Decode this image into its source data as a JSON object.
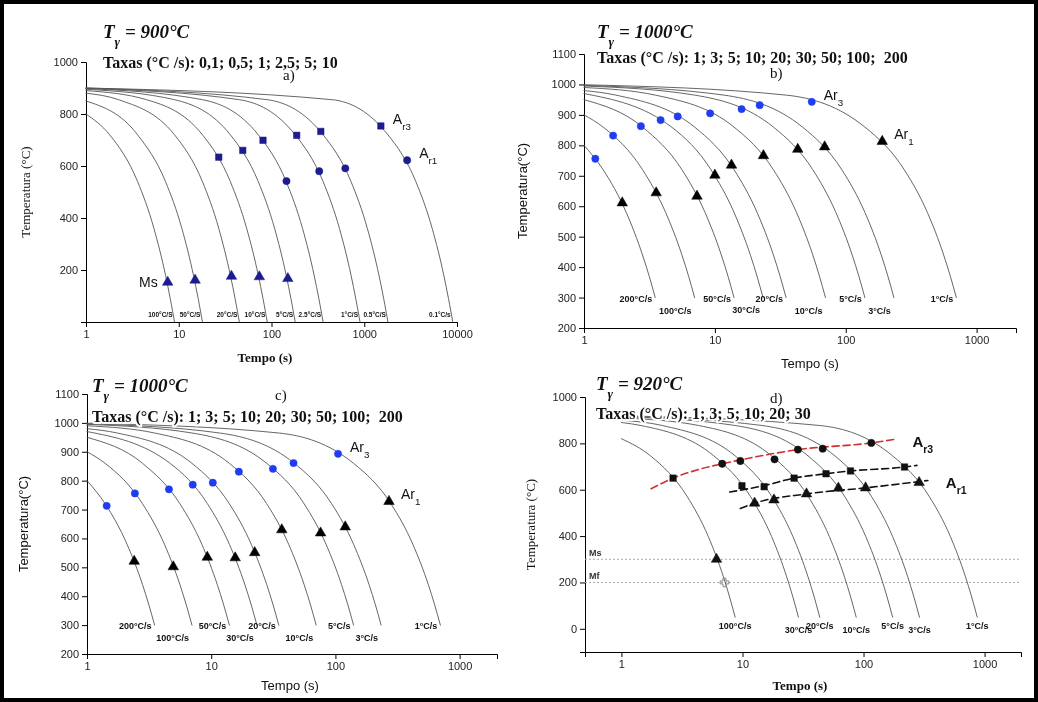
{
  "chart_data": [
    {
      "type": "line",
      "title": "T$_{γ}$ = 900°C",
      "subtitle": "Taxas (°C /s): 0,1; 0,5; 1; 2,5; 5; 10",
      "annotations": [
        "a)"
      ],
      "xlabel": "Tempo (s)",
      "ylabel": "Temperatura (°C)",
      "log": "x",
      "xlim": [
        1,
        10000
      ],
      "xticks": [
        1,
        10,
        100,
        1000,
        10000
      ],
      "ylim": [
        0,
        1000
      ],
      "yticks": [
        200,
        400,
        600,
        800,
        1000
      ],
      "series": [
        {
          "type": "line",
          "name": "100°C/S",
          "color": "#555555",
          "marker": "none",
          "x": [
            1,
            1.8,
            3.6,
            5.4,
            7.2,
            8.1,
            9
          ],
          "values": [
            800,
            720,
            540,
            360,
            180,
            90,
            0
          ]
        },
        {
          "type": "line",
          "name": "50°C/S",
          "color": "#555555",
          "marker": "none",
          "x": [
            1,
            3.6,
            7.2,
            10.8,
            14.4,
            16.2,
            18
          ],
          "values": [
            850,
            720,
            540,
            360,
            180,
            90,
            0
          ]
        },
        {
          "type": "line",
          "name": "20°C/S",
          "color": "#555555",
          "marker": "none",
          "x": [
            1,
            2.25,
            9,
            18,
            27,
            36,
            40.5,
            45
          ],
          "values": [
            880,
            855,
            720,
            540,
            360,
            180,
            90,
            0
          ]
        },
        {
          "type": "line",
          "name": "10°C/S",
          "color": "#555555",
          "marker": "none",
          "x": [
            1,
            4.5,
            18,
            36,
            54,
            72,
            81,
            90
          ],
          "values": [
            890,
            855,
            720,
            540,
            360,
            180,
            90,
            0
          ]
        },
        {
          "type": "line",
          "name": "5°C/S",
          "color": "#555555",
          "marker": "none",
          "x": [
            1,
            9,
            36,
            72,
            108,
            144,
            162,
            180
          ],
          "values": [
            895,
            855,
            720,
            540,
            360,
            180,
            90,
            0
          ]
        },
        {
          "type": "line",
          "name": "2.5°C/S",
          "color": "#555555",
          "marker": "none",
          "x": [
            1,
            18,
            72,
            144,
            216,
            288,
            324,
            360
          ],
          "values": [
            898,
            855,
            720,
            540,
            360,
            180,
            90,
            0
          ]
        },
        {
          "type": "line",
          "name": "1°C/S",
          "color": "#555555",
          "marker": "none",
          "x": [
            1,
            45,
            180,
            360,
            540,
            720,
            810,
            900
          ],
          "values": [
            899,
            855,
            720,
            540,
            360,
            180,
            90,
            0
          ]
        },
        {
          "type": "line",
          "name": "0.5°C/S",
          "color": "#555555",
          "marker": "none",
          "x": [
            1,
            90,
            360,
            720,
            1080,
            1440,
            1620,
            1800
          ],
          "values": [
            900,
            855,
            720,
            540,
            360,
            180,
            90,
            0
          ]
        },
        {
          "type": "line",
          "name": "0.1°C/s",
          "color": "#555555",
          "marker": "none",
          "x": [
            1,
            450,
            1800,
            3600,
            5400,
            7200,
            8100,
            9000
          ],
          "values": [
            900,
            855,
            720,
            540,
            360,
            180,
            90,
            0
          ]
        },
        {
          "type": "scatter",
          "name": "A$_{r3}$",
          "color": "#1c1c8f",
          "marker": "square",
          "x": [
            27,
            49,
            81,
            187,
            340,
            1510
          ],
          "values": [
            634,
            660,
            699,
            718,
            733,
            754
          ]
        },
        {
          "type": "scatter",
          "name": "A$_{r1}$",
          "color": "#1c1c8f",
          "marker": "circle",
          "x": [
            145,
            327,
            625,
            2900
          ],
          "values": [
            542,
            580,
            591,
            622
          ]
        },
        {
          "type": "scatter",
          "name": "Ms",
          "color": "#1c1c8f",
          "marker": "triangle",
          "x": [
            7.6,
            15,
            37,
            74,
            150
          ],
          "values": [
            153,
            161,
            176,
            174,
            167
          ]
        }
      ]
    },
    {
      "type": "line",
      "title": "T$_{γ}$ = 1000°C",
      "subtitle": "Taxas (°C /s): 1; 3; 5; 10; 20; 30; 50; 100;  200",
      "annotations": [
        "b)"
      ],
      "xlabel": "Tempo (s)",
      "ylabel": "Temperatura(°C)",
      "log": "x",
      "xlim": [
        1,
        2000
      ],
      "xticks": [
        1,
        10,
        100,
        1000
      ],
      "ylim": [
        200,
        1100
      ],
      "yticks": [
        200,
        300,
        400,
        500,
        600,
        700,
        800,
        900,
        1000,
        1100
      ],
      "series": [
        {
          "type": "line",
          "name": "200°C/s",
          "color": "#555555",
          "marker": "none",
          "x": [
            1,
            1.4,
            2.1,
            2.8,
            3.15,
            3.5
          ],
          "values": [
            800,
            720,
            580,
            440,
            370,
            300
          ]
        },
        {
          "type": "line",
          "name": "100°C/s",
          "color": "#555555",
          "marker": "none",
          "x": [
            1,
            1.4,
            2.8,
            4.2,
            5.6,
            6.3,
            7
          ],
          "values": [
            900,
            860,
            720,
            580,
            440,
            370,
            300
          ]
        },
        {
          "type": "line",
          "name": "50°C/s",
          "color": "#555555",
          "marker": "none",
          "x": [
            1,
            2.8,
            5.6,
            8.4,
            11.2,
            12.6,
            14
          ],
          "values": [
            950,
            860,
            720,
            580,
            440,
            370,
            300
          ]
        },
        {
          "type": "line",
          "name": "30°C/s",
          "color": "#555555",
          "marker": "none",
          "x": [
            1,
            4.7,
            9.3,
            14,
            18.7,
            21,
            23.3
          ],
          "values": [
            970,
            859,
            721,
            580,
            439,
            370,
            301
          ]
        },
        {
          "type": "line",
          "name": "20°C/s",
          "color": "#555555",
          "marker": "none",
          "x": [
            1,
            1.75,
            7,
            14,
            21,
            28,
            31.5,
            35
          ],
          "values": [
            980,
            965,
            860,
            720,
            580,
            440,
            370,
            300
          ]
        },
        {
          "type": "line",
          "name": "10°C/s",
          "color": "#555555",
          "marker": "none",
          "x": [
            1,
            3.5,
            14,
            28,
            42,
            56,
            63,
            70
          ],
          "values": [
            990,
            965,
            860,
            720,
            580,
            440,
            370,
            300
          ]
        },
        {
          "type": "line",
          "name": "5°C/s",
          "color": "#555555",
          "marker": "none",
          "x": [
            1,
            7,
            28,
            56,
            84,
            112,
            126,
            140
          ],
          "values": [
            995,
            965,
            860,
            720,
            580,
            440,
            370,
            300
          ]
        },
        {
          "type": "line",
          "name": "3°C/s",
          "color": "#555555",
          "marker": "none",
          "x": [
            1,
            11.7,
            46.7,
            93.3,
            140,
            186.7,
            210,
            233.3
          ],
          "values": [
            997,
            965,
            860,
            720,
            580,
            440,
            370,
            300
          ]
        },
        {
          "type": "line",
          "name": "1°C/s",
          "color": "#555555",
          "marker": "none",
          "x": [
            1,
            35,
            140,
            280,
            420,
            560,
            630,
            700
          ],
          "values": [
            999,
            965,
            860,
            720,
            580,
            440,
            370,
            300
          ]
        },
        {
          "type": "scatter",
          "name": "Ar$_{3}$",
          "color": "#1f3cf0",
          "marker": "circle",
          "x": [
            1.22,
            1.67,
            2.72,
            3.85,
            5.2,
            9.2,
            16,
            22,
            55
          ],
          "values": [
            756,
            832,
            863,
            883,
            895,
            905,
            919,
            932,
            943
          ]
        },
        {
          "type": "scatter",
          "name": "Ar$_{1}$",
          "color": "#000000",
          "marker": "triangle",
          "x": [
            1.96,
            3.56,
            7.3,
            10,
            13.4,
            23.5,
            43,
            69,
            190
          ],
          "values": [
            611,
            644,
            633,
            702,
            735,
            766,
            787,
            795,
            813
          ]
        }
      ]
    },
    {
      "type": "line",
      "title": "T$_{γ}$ = 1000°C",
      "subtitle": "Taxas (°C /s): 1; 3; 5; 10; 20; 30; 50; 100;  200",
      "annotations": [
        "c)"
      ],
      "xlabel": "Tempo (s)",
      "ylabel": "Temperatura(°C)",
      "log": "x",
      "xlim": [
        1,
        2000
      ],
      "xticks": [
        1,
        10,
        100,
        1000
      ],
      "ylim": [
        200,
        1100
      ],
      "yticks": [
        200,
        300,
        400,
        500,
        600,
        700,
        800,
        900,
        1000,
        1100
      ],
      "series": [
        {
          "type": "line",
          "name": "200°C/s",
          "color": "#555555",
          "marker": "none",
          "x": [
            1,
            1.4,
            2.1,
            2.8,
            3.15,
            3.5
          ],
          "values": [
            800,
            720,
            580,
            440,
            370,
            300
          ]
        },
        {
          "type": "line",
          "name": "100°C/s",
          "color": "#555555",
          "marker": "none",
          "x": [
            1,
            1.4,
            2.8,
            4.2,
            5.6,
            6.3,
            7
          ],
          "values": [
            900,
            860,
            720,
            580,
            440,
            370,
            300
          ]
        },
        {
          "type": "line",
          "name": "50°C/s",
          "color": "#555555",
          "marker": "none",
          "x": [
            1,
            2.8,
            5.6,
            8.4,
            11.2,
            12.6,
            14
          ],
          "values": [
            950,
            860,
            720,
            580,
            440,
            370,
            300
          ]
        },
        {
          "type": "line",
          "name": "30°C/s",
          "color": "#555555",
          "marker": "none",
          "x": [
            1,
            4.7,
            9.3,
            14,
            18.7,
            21,
            23.3
          ],
          "values": [
            970,
            859,
            721,
            580,
            439,
            370,
            301
          ]
        },
        {
          "type": "line",
          "name": "20°C/s",
          "color": "#555555",
          "marker": "none",
          "x": [
            1,
            1.75,
            7,
            14,
            21,
            28,
            31.5,
            35
          ],
          "values": [
            980,
            965,
            860,
            720,
            580,
            440,
            370,
            300
          ]
        },
        {
          "type": "line",
          "name": "10°C/s",
          "color": "#555555",
          "marker": "none",
          "x": [
            1,
            3.5,
            14,
            28,
            42,
            56,
            63,
            70
          ],
          "values": [
            990,
            965,
            860,
            720,
            580,
            440,
            370,
            300
          ]
        },
        {
          "type": "line",
          "name": "5°C/s",
          "color": "#555555",
          "marker": "none",
          "x": [
            1,
            7,
            28,
            56,
            84,
            112,
            126,
            140
          ],
          "values": [
            995,
            965,
            860,
            720,
            580,
            440,
            370,
            300
          ]
        },
        {
          "type": "line",
          "name": "3°C/s",
          "color": "#555555",
          "marker": "none",
          "x": [
            1,
            11.7,
            46.7,
            93.3,
            140,
            186.7,
            210,
            233.3
          ],
          "values": [
            997,
            965,
            860,
            720,
            580,
            440,
            370,
            300
          ]
        },
        {
          "type": "line",
          "name": "1°C/s",
          "color": "#555555",
          "marker": "none",
          "x": [
            1,
            35,
            140,
            280,
            420,
            560,
            630,
            700
          ],
          "values": [
            999,
            965,
            860,
            720,
            580,
            440,
            370,
            300
          ]
        },
        {
          "type": "scatter",
          "name": "Ar$_{3}$",
          "color": "#1f3cf0",
          "marker": "circle",
          "x": [
            1.44,
            2.43,
            4.57,
            7.1,
            10.3,
            16.7,
            31.4,
            46,
            105
          ],
          "values": [
            713,
            756,
            770,
            786,
            793,
            831,
            841,
            861,
            893
          ]
        },
        {
          "type": "scatter",
          "name": "Ar$_{1}$",
          "color": "#000000",
          "marker": "triangle",
          "x": [
            2.4,
            4.95,
            9.3,
            15.6,
            22.4,
            37,
            76,
            120,
            270
          ],
          "values": [
            521,
            502,
            535,
            533,
            551,
            630,
            619,
            640,
            728
          ]
        }
      ]
    },
    {
      "type": "line",
      "title": "T$_{γ}$ = 920°C",
      "subtitle": "Taxas (°C /s): 1; 3; 5; 10; 20; 30",
      "annotations": [
        "d)"
      ],
      "xlabel": "Tempo (s)",
      "ylabel": "Temperatura (°C)",
      "log": "x",
      "xlim": [
        0.5,
        2000
      ],
      "xticks": [
        1,
        10,
        100,
        1000
      ],
      "ylim": [
        -100,
        1000
      ],
      "yticks": [
        0,
        200,
        400,
        600,
        800,
        1000
      ],
      "ref_lines": [
        {
          "axis": "y",
          "value": 300,
          "label": "Ms",
          "color": "#aaaaaa",
          "line_style": "dotted"
        },
        {
          "axis": "y",
          "value": 200,
          "label": "Mf",
          "color": "#aaaaaa",
          "line_style": "dotted"
        }
      ],
      "series": [
        {
          "type": "line",
          "name": "100°C/s",
          "color": "#555555",
          "marker": "none",
          "x": [
            1,
            1.74,
            3.48,
            5.22,
            6.96,
            7.83,
            8.7
          ],
          "values": [
            820,
            746,
            572,
            398,
            224,
            137,
            50
          ]
        },
        {
          "type": "line",
          "name": "30°C/s",
          "color": "#555555",
          "marker": "none",
          "x": [
            1,
            1.45,
            5.8,
            11.6,
            17.4,
            23.2,
            26.1,
            29
          ],
          "values": [
            890,
            877,
            746,
            572,
            398,
            224,
            137,
            50
          ]
        },
        {
          "type": "line",
          "name": "20°C/s",
          "color": "#555555",
          "marker": "none",
          "x": [
            1,
            2.175,
            8.7,
            17.4,
            26.1,
            34.8,
            39.15,
            43.5
          ],
          "values": [
            900,
            877,
            746,
            572,
            398,
            224,
            137,
            50
          ]
        },
        {
          "type": "line",
          "name": "10°C/s",
          "color": "#555555",
          "marker": "none",
          "x": [
            1,
            4.35,
            17.4,
            34.8,
            52.2,
            69.6,
            78.3,
            87
          ],
          "values": [
            910,
            877,
            746,
            572,
            398,
            224,
            137,
            50
          ]
        },
        {
          "type": "line",
          "name": "5°C/s",
          "color": "#555555",
          "marker": "none",
          "x": [
            1,
            8.7,
            34.8,
            69.6,
            104.4,
            139.2,
            156.6,
            174
          ],
          "values": [
            915,
            877,
            746,
            572,
            398,
            224,
            137,
            50
          ]
        },
        {
          "type": "line",
          "name": "3°C/s",
          "color": "#555555",
          "marker": "none",
          "x": [
            1,
            14.5,
            58,
            116,
            174,
            232,
            261,
            290
          ],
          "values": [
            917,
            877,
            746,
            572,
            398,
            224,
            137,
            50
          ]
        },
        {
          "type": "line",
          "name": "1°C/s",
          "color": "#555555",
          "marker": "none",
          "x": [
            1,
            43.5,
            174,
            348,
            522,
            696,
            783,
            870
          ],
          "values": [
            919,
            877,
            746,
            572,
            398,
            224,
            137,
            50
          ]
        },
        {
          "type": "line",
          "name": "A$_{r3}$",
          "color": "#d03030",
          "marker": "none",
          "line_style": "dashed",
          "x": [
            1.76,
            2.67,
            4.27,
            6.8,
            11.8,
            28.7,
            116,
            180
          ],
          "values": [
            604,
            650,
            686,
            712,
            738,
            773,
            802,
            817
          ]
        },
        {
          "type": "line",
          "color": "#111111",
          "marker": "none",
          "line_style": "dashed",
          "x": [
            7.85,
            15.1,
            26.7,
            49,
            78,
            218,
            276
          ],
          "values": [
            590,
            618,
            650,
            669,
            681,
            698,
            705
          ]
        },
        {
          "type": "line",
          "name": "A$_{r1}$",
          "color": "#111111",
          "marker": "none",
          "line_style": "dashed",
          "x": [
            9.6,
            12.6,
            33.8,
            104,
            340
          ],
          "values": [
            519,
            542,
            582,
            608,
            640
          ]
        },
        {
          "type": "scatter",
          "color": "#111111",
          "marker": "circle",
          "x": [
            6.8,
            9.6,
            18.4,
            28.7,
            46,
            116
          ],
          "values": [
            712,
            724,
            731,
            773,
            777,
            802
          ]
        },
        {
          "type": "scatter",
          "color": "#111111",
          "marker": "square",
          "x": [
            2.67,
            9.9,
            15.1,
            26.7,
            49,
            78,
            218
          ],
          "values": [
            650,
            617,
            613,
            650,
            669,
            681,
            698
          ]
        },
        {
          "type": "scatter",
          "color": "#111111",
          "marker": "triangle",
          "x": [
            12.6,
            18.2,
            33.8,
            62,
            104,
            288
          ],
          "values": [
            542,
            556,
            582,
            607,
            608,
            631
          ]
        },
        {
          "type": "scatter",
          "color": "#111111",
          "marker": "triangle",
          "x": [
            6.1
          ],
          "values": [
            300
          ]
        },
        {
          "type": "scatter",
          "color": "#888888",
          "marker": "cross",
          "x": [
            7.1
          ],
          "values": [
            200
          ]
        }
      ]
    }
  ]
}
